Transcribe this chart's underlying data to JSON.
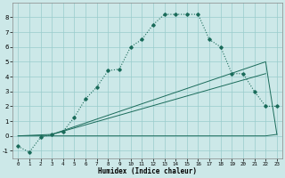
{
  "xlabel": "Humidex (Indice chaleur)",
  "ylabel": "",
  "background_color": "#cce8e8",
  "grid_color": "#99cccc",
  "line_color": "#1a6b5a",
  "xlim": [
    -0.5,
    23.5
  ],
  "ylim": [
    -1.5,
    9.0
  ],
  "xticks": [
    0,
    1,
    2,
    3,
    4,
    5,
    6,
    7,
    8,
    9,
    10,
    11,
    12,
    13,
    14,
    15,
    16,
    17,
    18,
    19,
    20,
    21,
    22,
    23
  ],
  "yticks": [
    -1,
    0,
    1,
    2,
    3,
    4,
    5,
    6,
    7,
    8
  ],
  "s1x": [
    0,
    1,
    2,
    3,
    4,
    5,
    6,
    7,
    8,
    9,
    10,
    11,
    12,
    13,
    14,
    15,
    16,
    17,
    18,
    19,
    20,
    21,
    22,
    23
  ],
  "s1y": [
    -0.7,
    -1.1,
    -0.1,
    0.1,
    0.3,
    1.25,
    2.5,
    3.3,
    4.4,
    4.5,
    6.0,
    6.5,
    7.5,
    8.2,
    8.2,
    8.2,
    8.2,
    6.5,
    6.0,
    4.2,
    4.2,
    3.0,
    2.0,
    2.0
  ],
  "s2x": [
    0,
    1,
    2,
    3,
    4,
    5,
    6,
    7,
    8,
    9,
    10,
    11,
    12,
    13,
    14,
    15,
    16,
    17,
    18,
    19,
    20,
    21,
    22,
    23
  ],
  "s2y": [
    0.0,
    0.0,
    0.0,
    0.0,
    0.0,
    0.0,
    0.0,
    0.0,
    0.0,
    0.0,
    0.0,
    0.0,
    0.0,
    0.0,
    0.0,
    0.0,
    0.0,
    0.0,
    0.0,
    0.0,
    0.0,
    0.0,
    0.0,
    0.1
  ],
  "s3x": [
    0,
    3,
    22,
    23
  ],
  "s3y": [
    0.0,
    0.1,
    5.0,
    0.1
  ],
  "s4x": [
    3,
    22
  ],
  "s4y": [
    0.1,
    4.2
  ]
}
